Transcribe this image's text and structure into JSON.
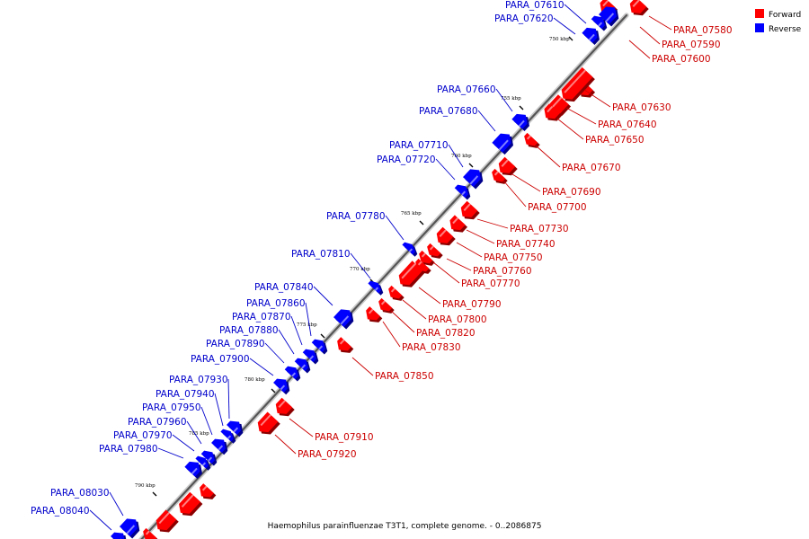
{
  "caption": "Haemophilus parainfluenzae T3T1, complete genome. - 0..2086875",
  "legend": {
    "forward": {
      "label": "Forward",
      "color": "#ff0000"
    },
    "reverse": {
      "label": "Reverse",
      "color": "#0000ff"
    }
  },
  "colors": {
    "forward": "#ff0000",
    "reverse": "#0000ff",
    "forward_label": "#cc0000",
    "reverse_label": "#0000cc",
    "backbone": "#555555"
  },
  "ticks": [
    {
      "label": "750 kbp"
    },
    {
      "label": "755 kbp"
    },
    {
      "label": "760 kbp"
    },
    {
      "label": "765 kbp"
    },
    {
      "label": "770 kbp"
    },
    {
      "label": "775 kbp"
    },
    {
      "label": "780 kbp"
    },
    {
      "label": "785 kbp"
    },
    {
      "label": "790 kbp"
    }
  ],
  "genes": [
    {
      "name": "PARA_07580",
      "strand": "forward"
    },
    {
      "name": "PARA_07590",
      "strand": "forward"
    },
    {
      "name": "PARA_07600",
      "strand": "forward"
    },
    {
      "name": "PARA_07610",
      "strand": "reverse"
    },
    {
      "name": "PARA_07620",
      "strand": "reverse"
    },
    {
      "name": "PARA_07630",
      "strand": "forward"
    },
    {
      "name": "PARA_07640",
      "strand": "forward"
    },
    {
      "name": "PARA_07650",
      "strand": "forward"
    },
    {
      "name": "PARA_07660",
      "strand": "reverse"
    },
    {
      "name": "PARA_07670",
      "strand": "forward"
    },
    {
      "name": "PARA_07680",
      "strand": "reverse"
    },
    {
      "name": "PARA_07690",
      "strand": "forward"
    },
    {
      "name": "PARA_07700",
      "strand": "forward"
    },
    {
      "name": "PARA_07710",
      "strand": "reverse"
    },
    {
      "name": "PARA_07720",
      "strand": "reverse"
    },
    {
      "name": "PARA_07730",
      "strand": "forward"
    },
    {
      "name": "PARA_07740",
      "strand": "forward"
    },
    {
      "name": "PARA_07750",
      "strand": "forward"
    },
    {
      "name": "PARA_07760",
      "strand": "forward"
    },
    {
      "name": "PARA_07770",
      "strand": "forward"
    },
    {
      "name": "PARA_07780",
      "strand": "reverse"
    },
    {
      "name": "PARA_07790",
      "strand": "forward"
    },
    {
      "name": "PARA_07800",
      "strand": "forward"
    },
    {
      "name": "PARA_07810",
      "strand": "reverse"
    },
    {
      "name": "PARA_07820",
      "strand": "forward"
    },
    {
      "name": "PARA_07830",
      "strand": "forward"
    },
    {
      "name": "PARA_07840",
      "strand": "reverse"
    },
    {
      "name": "PARA_07850",
      "strand": "forward"
    },
    {
      "name": "PARA_07860",
      "strand": "reverse"
    },
    {
      "name": "PARA_07870",
      "strand": "reverse"
    },
    {
      "name": "PARA_07880",
      "strand": "reverse"
    },
    {
      "name": "PARA_07890",
      "strand": "reverse"
    },
    {
      "name": "PARA_07900",
      "strand": "reverse"
    },
    {
      "name": "PARA_07910",
      "strand": "forward"
    },
    {
      "name": "PARA_07920",
      "strand": "forward"
    },
    {
      "name": "PARA_07930",
      "strand": "reverse"
    },
    {
      "name": "PARA_07940",
      "strand": "reverse"
    },
    {
      "name": "PARA_07950",
      "strand": "reverse"
    },
    {
      "name": "PARA_07960",
      "strand": "reverse"
    },
    {
      "name": "PARA_07970",
      "strand": "reverse"
    },
    {
      "name": "PARA_07980",
      "strand": "reverse"
    },
    {
      "name": "PARA_08030",
      "strand": "reverse"
    },
    {
      "name": "PARA_08040",
      "strand": "reverse"
    }
  ]
}
